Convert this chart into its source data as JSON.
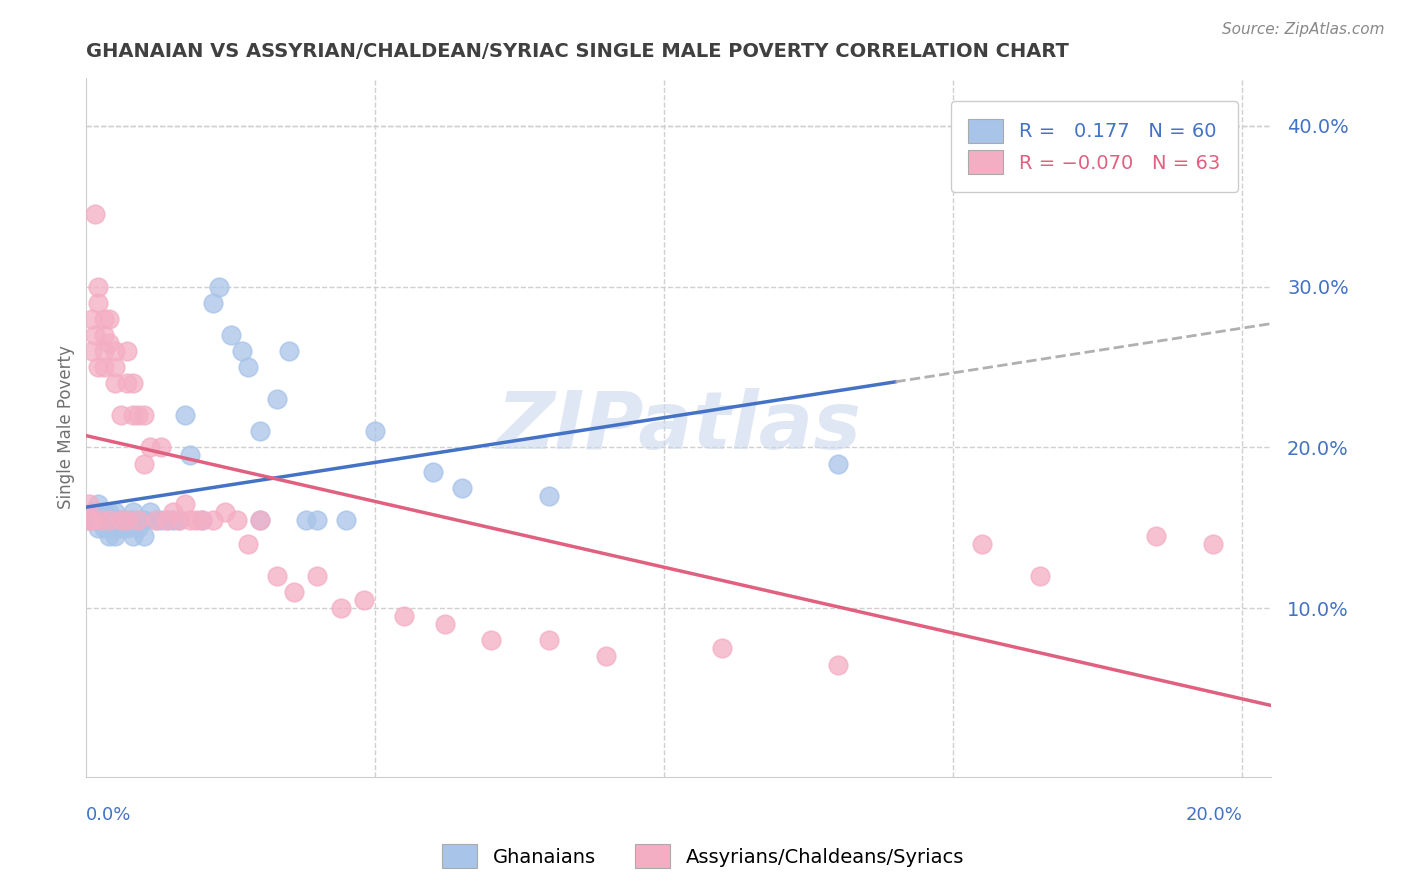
{
  "title": "GHANAIAN VS ASSYRIAN/CHALDEAN/SYRIAC SINGLE MALE POVERTY CORRELATION CHART",
  "source": "Source: ZipAtlas.com",
  "ylabel": "Single Male Poverty",
  "legend_labels": [
    "Ghanaians",
    "Assyrians/Chaldeans/Syriacs"
  ],
  "r_ghanaian": 0.177,
  "n_ghanaian": 60,
  "r_assyrian": -0.07,
  "n_assyrian": 63,
  "blue_color": "#a8c4e8",
  "pink_color": "#f4aec4",
  "blue_line_color": "#4472c4",
  "pink_line_color": "#e06080",
  "dash_line_color": "#b0b0b0",
  "title_color": "#404040",
  "axis_label_color": "#707070",
  "tick_label_color": "#4472c4",
  "watermark": "ZIPatlas",
  "xlim": [
    0.0,
    0.205
  ],
  "ylim": [
    -0.005,
    0.43
  ],
  "x_ticks": [
    0.0,
    0.05,
    0.1,
    0.15,
    0.2
  ],
  "y_ticks_right": [
    0.1,
    0.2,
    0.3,
    0.4
  ],
  "blue_trend": [
    0.148,
    0.82
  ],
  "pink_trend": [
    0.148,
    -0.35
  ],
  "ghanaian_x": [
    0.0005,
    0.001,
    0.001,
    0.0015,
    0.0015,
    0.002,
    0.002,
    0.002,
    0.0025,
    0.003,
    0.003,
    0.003,
    0.003,
    0.0035,
    0.004,
    0.004,
    0.004,
    0.004,
    0.005,
    0.005,
    0.005,
    0.005,
    0.006,
    0.006,
    0.006,
    0.007,
    0.007,
    0.008,
    0.008,
    0.008,
    0.009,
    0.009,
    0.01,
    0.01,
    0.011,
    0.012,
    0.013,
    0.014,
    0.015,
    0.016,
    0.017,
    0.018,
    0.02,
    0.022,
    0.023,
    0.025,
    0.027,
    0.028,
    0.03,
    0.03,
    0.033,
    0.035,
    0.038,
    0.04,
    0.045,
    0.05,
    0.06,
    0.065,
    0.08,
    0.13
  ],
  "ghanaian_y": [
    0.155,
    0.16,
    0.155,
    0.16,
    0.155,
    0.165,
    0.155,
    0.15,
    0.16,
    0.155,
    0.16,
    0.155,
    0.15,
    0.15,
    0.15,
    0.155,
    0.16,
    0.145,
    0.155,
    0.16,
    0.15,
    0.145,
    0.155,
    0.155,
    0.15,
    0.155,
    0.15,
    0.155,
    0.16,
    0.145,
    0.155,
    0.15,
    0.155,
    0.145,
    0.16,
    0.155,
    0.155,
    0.155,
    0.155,
    0.155,
    0.22,
    0.195,
    0.155,
    0.29,
    0.3,
    0.27,
    0.26,
    0.25,
    0.155,
    0.21,
    0.23,
    0.26,
    0.155,
    0.155,
    0.155,
    0.21,
    0.185,
    0.175,
    0.17,
    0.19
  ],
  "assyrian_x": [
    0.0005,
    0.0005,
    0.001,
    0.001,
    0.001,
    0.0015,
    0.0015,
    0.002,
    0.002,
    0.002,
    0.0025,
    0.003,
    0.003,
    0.003,
    0.003,
    0.004,
    0.004,
    0.004,
    0.005,
    0.005,
    0.005,
    0.006,
    0.006,
    0.007,
    0.007,
    0.007,
    0.008,
    0.008,
    0.009,
    0.009,
    0.01,
    0.01,
    0.011,
    0.012,
    0.013,
    0.014,
    0.015,
    0.016,
    0.017,
    0.018,
    0.019,
    0.02,
    0.022,
    0.024,
    0.026,
    0.028,
    0.03,
    0.033,
    0.036,
    0.04,
    0.044,
    0.048,
    0.055,
    0.062,
    0.07,
    0.08,
    0.09,
    0.11,
    0.13,
    0.155,
    0.165,
    0.185,
    0.195
  ],
  "assyrian_y": [
    0.165,
    0.155,
    0.28,
    0.26,
    0.155,
    0.345,
    0.27,
    0.29,
    0.3,
    0.25,
    0.155,
    0.27,
    0.26,
    0.28,
    0.25,
    0.265,
    0.28,
    0.155,
    0.24,
    0.25,
    0.26,
    0.155,
    0.22,
    0.155,
    0.24,
    0.26,
    0.22,
    0.24,
    0.155,
    0.22,
    0.22,
    0.19,
    0.2,
    0.155,
    0.2,
    0.155,
    0.16,
    0.155,
    0.165,
    0.155,
    0.155,
    0.155,
    0.155,
    0.16,
    0.155,
    0.14,
    0.155,
    0.12,
    0.11,
    0.12,
    0.1,
    0.105,
    0.095,
    0.09,
    0.08,
    0.08,
    0.07,
    0.075,
    0.065,
    0.14,
    0.12,
    0.145,
    0.14
  ]
}
